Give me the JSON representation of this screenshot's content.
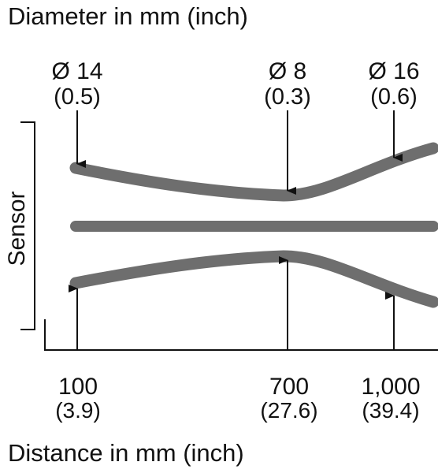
{
  "titles": {
    "diameter": "Diameter in mm (inch)",
    "distance": "Distance in mm (inch)",
    "sensor": "Sensor"
  },
  "diameters": [
    {
      "mm": "Ø 14",
      "inch": "(0.5)"
    },
    {
      "mm": "Ø 8",
      "inch": "(0.3)"
    },
    {
      "mm": "Ø 16",
      "inch": "(0.6)"
    }
  ],
  "distances": [
    {
      "mm": "100",
      "inch": "(3.9)"
    },
    {
      "mm": "700",
      "inch": "(27.6)"
    },
    {
      "mm": "1,000",
      "inch": "(39.4)"
    }
  ],
  "colors": {
    "beam": "#6e6e6e",
    "line": "#111111"
  }
}
